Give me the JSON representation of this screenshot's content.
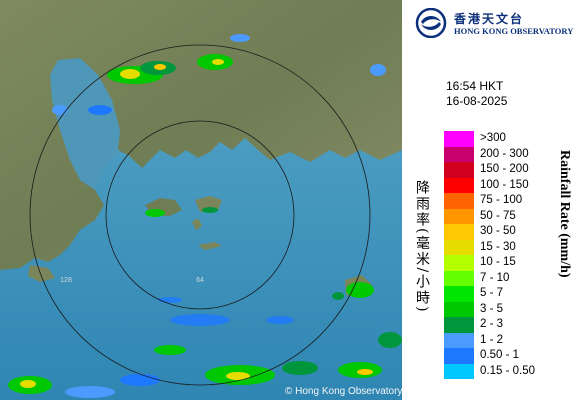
{
  "map": {
    "range_rings": [
      {
        "label": "64"
      },
      {
        "label": "128"
      }
    ],
    "watermark": "© Hong Kong Observatory"
  },
  "header": {
    "org_chinese": "香港天文台",
    "org_english": "HONG KONG OBSERVATORY"
  },
  "observation": {
    "time": "16:54 HKT",
    "date": "16-08-2025"
  },
  "legend": {
    "title_chinese": "降雨率(毫米/小時)",
    "title_english": "Rainfall Rate (mm/h)",
    "items": [
      {
        "label": ">300",
        "color": "#ff00ff"
      },
      {
        "label": "200 - 300",
        "color": "#c8006e"
      },
      {
        "label": "150 - 200",
        "color": "#d2001e"
      },
      {
        "label": "100 - 150",
        "color": "#ff0000"
      },
      {
        "label": "75 - 100",
        "color": "#ff6400"
      },
      {
        "label": "50 - 75",
        "color": "#ff9600"
      },
      {
        "label": "30 - 50",
        "color": "#ffc800"
      },
      {
        "label": "15 - 30",
        "color": "#e6dc00"
      },
      {
        "label": "10 - 15",
        "color": "#b4ff00"
      },
      {
        "label": "7 - 10",
        "color": "#64ff00"
      },
      {
        "label": "5 - 7",
        "color": "#00e600"
      },
      {
        "label": "3 - 5",
        "color": "#00c800"
      },
      {
        "label": "2 - 3",
        "color": "#00963c"
      },
      {
        "label": "1 - 2",
        "color": "#4b9bff"
      },
      {
        "label": "0.50 - 1",
        "color": "#1e78ff"
      },
      {
        "label": "0.15 - 0.50",
        "color": "#00c8ff"
      }
    ]
  }
}
